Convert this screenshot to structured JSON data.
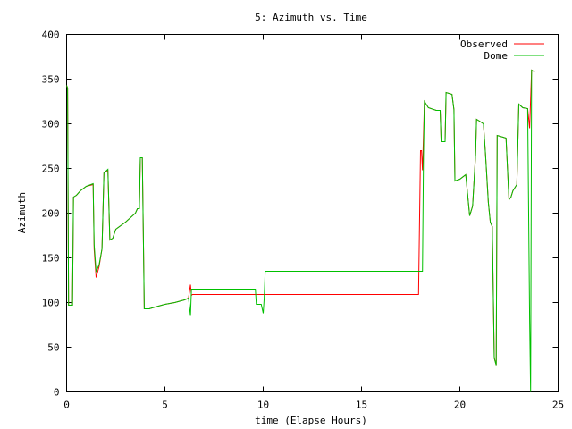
{
  "chart_data": {
    "type": "line",
    "title": "5: Azimuth vs. Time",
    "xlabel": "time (Elapse Hours)",
    "ylabel": "Azimuth",
    "xlim": [
      0,
      25
    ],
    "ylim": [
      0,
      400
    ],
    "xticks": [
      0,
      5,
      10,
      15,
      20,
      25
    ],
    "yticks": [
      0,
      50,
      100,
      150,
      200,
      250,
      300,
      350,
      400
    ],
    "grid": false,
    "legend_position": "top-right",
    "series": [
      {
        "name": "Observed",
        "color": "#ff0000",
        "points": [
          [
            0.0,
            343
          ],
          [
            0.05,
            340
          ],
          [
            0.1,
            97
          ],
          [
            0.3,
            97
          ],
          [
            0.35,
            218
          ],
          [
            0.5,
            220
          ],
          [
            0.7,
            225
          ],
          [
            1.0,
            230
          ],
          [
            1.35,
            232
          ],
          [
            1.4,
            160
          ],
          [
            1.5,
            128
          ],
          [
            1.65,
            140
          ],
          [
            1.8,
            160
          ],
          [
            1.9,
            245
          ],
          [
            2.1,
            248
          ],
          [
            2.2,
            170
          ],
          [
            2.35,
            172
          ],
          [
            2.5,
            182
          ],
          [
            3.0,
            190
          ],
          [
            3.5,
            200
          ],
          [
            3.6,
            205
          ],
          [
            3.7,
            205
          ],
          [
            3.75,
            262
          ],
          [
            3.85,
            262
          ],
          [
            3.9,
            180
          ],
          [
            3.95,
            93
          ],
          [
            4.2,
            93
          ],
          [
            4.5,
            95
          ],
          [
            5.0,
            98
          ],
          [
            5.5,
            100
          ],
          [
            6.0,
            103
          ],
          [
            6.2,
            105
          ],
          [
            6.3,
            120
          ],
          [
            6.35,
            108
          ],
          [
            6.4,
            109
          ],
          [
            17.9,
            109
          ],
          [
            18.0,
            270
          ],
          [
            18.05,
            270
          ],
          [
            18.1,
            248
          ],
          [
            18.2,
            325
          ],
          [
            18.4,
            318
          ],
          [
            18.8,
            315
          ],
          [
            19.0,
            315
          ],
          [
            19.05,
            280
          ],
          [
            19.25,
            280
          ],
          [
            19.3,
            335
          ],
          [
            19.6,
            333
          ],
          [
            19.7,
            316
          ],
          [
            19.75,
            236
          ],
          [
            20.0,
            238
          ],
          [
            20.3,
            243
          ],
          [
            20.4,
            220
          ],
          [
            20.5,
            197
          ],
          [
            20.65,
            208
          ],
          [
            20.8,
            265
          ],
          [
            20.85,
            305
          ],
          [
            21.0,
            303
          ],
          [
            21.2,
            300
          ],
          [
            21.3,
            268
          ],
          [
            21.45,
            212
          ],
          [
            21.55,
            190
          ],
          [
            21.65,
            185
          ],
          [
            21.75,
            38
          ],
          [
            21.85,
            30
          ],
          [
            21.9,
            287
          ],
          [
            22.2,
            285
          ],
          [
            22.35,
            284
          ],
          [
            22.5,
            215
          ],
          [
            22.6,
            218
          ],
          [
            22.7,
            225
          ],
          [
            22.9,
            232
          ],
          [
            23.0,
            322
          ],
          [
            23.2,
            318
          ],
          [
            23.45,
            317
          ],
          [
            23.55,
            295
          ],
          [
            23.65,
            360
          ],
          [
            23.8,
            358
          ]
        ]
      },
      {
        "name": "Dome",
        "color": "#00c000",
        "points": [
          [
            0.0,
            343
          ],
          [
            0.05,
            340
          ],
          [
            0.1,
            97
          ],
          [
            0.3,
            97
          ],
          [
            0.35,
            218
          ],
          [
            0.5,
            220
          ],
          [
            0.7,
            225
          ],
          [
            1.0,
            230
          ],
          [
            1.35,
            233
          ],
          [
            1.4,
            165
          ],
          [
            1.5,
            135
          ],
          [
            1.65,
            142
          ],
          [
            1.8,
            160
          ],
          [
            1.9,
            245
          ],
          [
            2.1,
            249
          ],
          [
            2.2,
            170
          ],
          [
            2.35,
            172
          ],
          [
            2.5,
            182
          ],
          [
            3.0,
            190
          ],
          [
            3.5,
            200
          ],
          [
            3.6,
            205
          ],
          [
            3.7,
            205
          ],
          [
            3.75,
            262
          ],
          [
            3.85,
            262
          ],
          [
            3.9,
            180
          ],
          [
            3.95,
            93
          ],
          [
            4.2,
            93
          ],
          [
            4.5,
            95
          ],
          [
            5.0,
            98
          ],
          [
            5.5,
            100
          ],
          [
            6.0,
            103
          ],
          [
            6.2,
            105
          ],
          [
            6.3,
            85
          ],
          [
            6.35,
            115
          ],
          [
            6.4,
            115
          ],
          [
            9.6,
            115
          ],
          [
            9.65,
            98
          ],
          [
            9.9,
            98
          ],
          [
            10.0,
            88
          ],
          [
            10.05,
            105
          ],
          [
            10.1,
            135
          ],
          [
            18.1,
            135
          ],
          [
            18.15,
            262
          ],
          [
            18.2,
            325
          ],
          [
            18.4,
            318
          ],
          [
            18.8,
            315
          ],
          [
            19.0,
            315
          ],
          [
            19.05,
            280
          ],
          [
            19.25,
            280
          ],
          [
            19.3,
            335
          ],
          [
            19.6,
            333
          ],
          [
            19.7,
            316
          ],
          [
            19.75,
            236
          ],
          [
            20.0,
            238
          ],
          [
            20.3,
            243
          ],
          [
            20.4,
            220
          ],
          [
            20.5,
            197
          ],
          [
            20.65,
            208
          ],
          [
            20.8,
            265
          ],
          [
            20.85,
            305
          ],
          [
            21.0,
            303
          ],
          [
            21.2,
            300
          ],
          [
            21.3,
            268
          ],
          [
            21.45,
            212
          ],
          [
            21.55,
            190
          ],
          [
            21.65,
            185
          ],
          [
            21.75,
            38
          ],
          [
            21.85,
            30
          ],
          [
            21.9,
            287
          ],
          [
            22.2,
            285
          ],
          [
            22.35,
            284
          ],
          [
            22.5,
            215
          ],
          [
            22.6,
            218
          ],
          [
            22.7,
            225
          ],
          [
            22.9,
            232
          ],
          [
            23.0,
            322
          ],
          [
            23.2,
            318
          ],
          [
            23.45,
            317
          ],
          [
            23.55,
            80
          ],
          [
            23.6,
            0
          ],
          [
            23.65,
            360
          ],
          [
            23.8,
            358
          ]
        ]
      }
    ]
  }
}
